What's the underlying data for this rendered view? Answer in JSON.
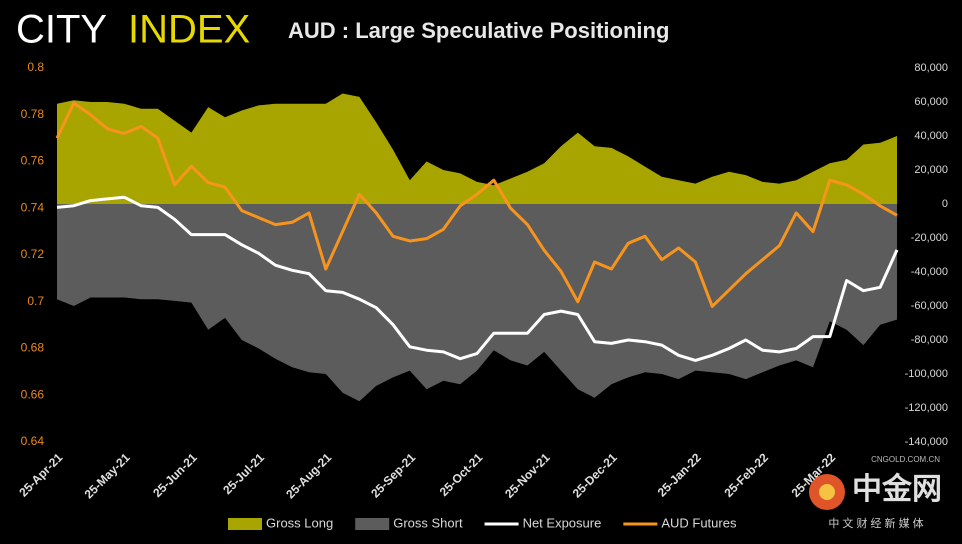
{
  "chart_data": {
    "type": "line",
    "logo": {
      "left": "CITY",
      "right": "INDEX"
    },
    "title": "AUD : Large Speculative Positioning",
    "categories": [
      "25-Apr-21",
      null,
      null,
      null,
      "25-May-21",
      null,
      null,
      null,
      "25-Jun-21",
      null,
      null,
      null,
      "25-Jul-21",
      null,
      null,
      null,
      "25-Aug-21",
      null,
      null,
      null,
      null,
      "25-Sep-21",
      null,
      null,
      null,
      "25-Oct-21",
      null,
      null,
      null,
      "25-Nov-21",
      null,
      null,
      null,
      "25-Dec-21",
      null,
      null,
      null,
      null,
      "25-Jan-22",
      null,
      null,
      null,
      "25-Feb-22",
      null,
      null,
      null,
      "25-Mar-22",
      null,
      null,
      null,
      null
    ],
    "series": [
      {
        "name": "Gross Long",
        "type": "area",
        "axis": "y2",
        "color": "#a9a500",
        "values": [
          59000,
          61000,
          60000,
          60000,
          59000,
          56000,
          56000,
          49000,
          42000,
          57000,
          51000,
          55000,
          58000,
          59000,
          59000,
          59000,
          59000,
          65000,
          63000,
          48000,
          32000,
          14000,
          25000,
          20000,
          18000,
          13000,
          11000,
          15000,
          19000,
          24000,
          34000,
          42000,
          34000,
          33000,
          28000,
          22000,
          16000,
          14000,
          12000,
          16000,
          19000,
          17000,
          13000,
          12000,
          14000,
          19000,
          24000,
          26000,
          35000,
          36000,
          40000
        ]
      },
      {
        "name": "Gross Short",
        "type": "area",
        "axis": "y2",
        "color": "#5c5c5c",
        "values": [
          -56000,
          -60000,
          -55000,
          -55000,
          -55000,
          -56000,
          -56000,
          -57000,
          -58000,
          -74000,
          -67000,
          -80000,
          -85000,
          -91000,
          -96000,
          -99000,
          -100000,
          -111000,
          -116000,
          -107000,
          -102000,
          -98000,
          -109000,
          -104000,
          -106000,
          -98000,
          -86000,
          -92000,
          -95000,
          -87000,
          -98000,
          -109000,
          -114000,
          -106000,
          -102000,
          -99000,
          -100000,
          -103000,
          -98000,
          -99000,
          -100000,
          -103000,
          -99000,
          -95000,
          -92000,
          -96000,
          -69000,
          -74000,
          -83000,
          -71000,
          -68000
        ]
      },
      {
        "name": "Net Exposure",
        "type": "line",
        "axis": "y2",
        "color": "#ffffff",
        "values": [
          -2000,
          -1000,
          2000,
          3000,
          4000,
          -1000,
          -2000,
          -9000,
          -18000,
          -18000,
          -18000,
          -24000,
          -29000,
          -36000,
          -39000,
          -41000,
          -51000,
          -52000,
          -56000,
          -61000,
          -71000,
          -84000,
          -86000,
          -87000,
          -91000,
          -88000,
          -76000,
          -76000,
          -76000,
          -65000,
          -63000,
          -65000,
          -81000,
          -82000,
          -80000,
          -81000,
          -83000,
          -89000,
          -92000,
          -89000,
          -85000,
          -80000,
          -86000,
          -87000,
          -85000,
          -78000,
          -78000,
          -45000,
          -51000,
          -49000,
          -27000
        ]
      },
      {
        "name": "AUD Futures",
        "type": "line",
        "axis": "y",
        "color": "#f7941d",
        "values": [
          0.77,
          0.785,
          0.78,
          0.774,
          0.772,
          0.775,
          0.77,
          0.75,
          0.758,
          0.751,
          0.749,
          0.739,
          0.736,
          0.733,
          0.734,
          0.738,
          0.714,
          0.73,
          0.746,
          0.738,
          0.728,
          0.726,
          0.727,
          0.731,
          0.741,
          0.746,
          0.752,
          0.74,
          0.733,
          0.722,
          0.713,
          0.7,
          0.717,
          0.714,
          0.725,
          0.728,
          0.718,
          0.723,
          0.717,
          0.698,
          0.705,
          0.712,
          0.718,
          0.724,
          0.738,
          0.73,
          0.752,
          0.75,
          0.746,
          0.741,
          0.737
        ]
      }
    ],
    "ylim": [
      0.64,
      0.8
    ],
    "yticks": [
      0.64,
      0.66,
      0.68,
      0.7,
      0.72,
      0.74,
      0.76,
      0.78,
      0.8
    ],
    "y2lim": [
      -140000,
      80000
    ],
    "y2ticks": [
      {
        "value": -140000,
        "label": "-140,000"
      },
      {
        "value": -120000,
        "label": "-120,000"
      },
      {
        "value": -100000,
        "label": "-100,000"
      },
      {
        "value": -80000,
        "label": "-80,000"
      },
      {
        "value": -60000,
        "label": "-60,000"
      },
      {
        "value": -40000,
        "label": "-40,000"
      },
      {
        "value": -20000,
        "label": "-20,000"
      },
      0,
      {
        "value": 20000,
        "label": "20,000"
      },
      {
        "value": 40000,
        "label": "40,000"
      },
      {
        "value": 60000,
        "label": "60,000"
      },
      {
        "value": 80000,
        "label": "80,000"
      }
    ],
    "grid": false,
    "legend": "bottom",
    "watermark": {
      "brand": "中金网",
      "site": "CNGOLD.COM.CN",
      "tagline": "中 文 财 经 新 媒 体"
    }
  }
}
